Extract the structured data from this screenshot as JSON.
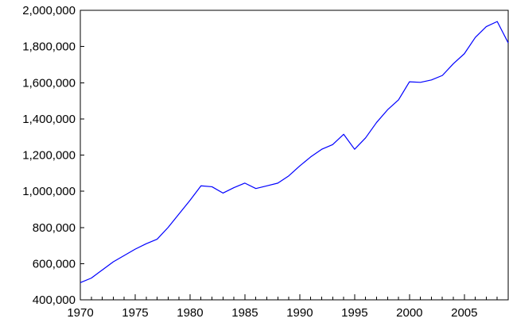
{
  "chart_data": {
    "type": "line",
    "title": "",
    "xlabel": "",
    "ylabel": "",
    "xlim": [
      1970,
      2009
    ],
    "ylim": [
      400000,
      2000000
    ],
    "grid": false,
    "legend": "none",
    "x_ticks": [
      1970,
      1975,
      1980,
      1985,
      1990,
      1995,
      2000,
      2005
    ],
    "x_tick_labels": [
      "1970",
      "1975",
      "1980",
      "1985",
      "1990",
      "1995",
      "2000",
      "2005"
    ],
    "y_ticks": [
      400000,
      600000,
      800000,
      1000000,
      1200000,
      1400000,
      1600000,
      1800000,
      2000000
    ],
    "y_tick_labels": [
      "400,000",
      "600,000",
      "800,000",
      "1,000,000",
      "1,200,000",
      "1,400,000",
      "1,600,000",
      "1,800,000",
      "2,000,000"
    ],
    "series": [
      {
        "color": "#0000ff",
        "x": [
          1970,
          1971,
          1972,
          1973,
          1974,
          1975,
          1976,
          1977,
          1978,
          1979,
          1980,
          1981,
          1982,
          1983,
          1984,
          1985,
          1986,
          1987,
          1988,
          1989,
          1990,
          1991,
          1992,
          1993,
          1994,
          1995,
          1996,
          1997,
          1998,
          1999,
          2000,
          2001,
          2002,
          2003,
          2004,
          2005,
          2006,
          2007,
          2008,
          2009
        ],
        "values": [
          495000,
          520000,
          565000,
          610000,
          645000,
          680000,
          710000,
          735000,
          800000,
          875000,
          950000,
          1030000,
          1025000,
          990000,
          1020000,
          1045000,
          1015000,
          1030000,
          1045000,
          1085000,
          1140000,
          1190000,
          1232000,
          1258000,
          1315000,
          1232000,
          1295000,
          1380000,
          1450000,
          1505000,
          1605000,
          1602000,
          1615000,
          1640000,
          1705000,
          1760000,
          1850000,
          1910000,
          1938000,
          1820000
        ]
      }
    ]
  }
}
